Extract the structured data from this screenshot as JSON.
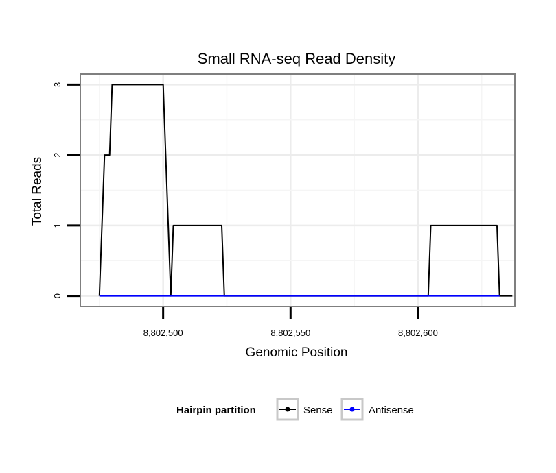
{
  "chart_data": {
    "type": "line",
    "title": "Small RNA-seq Read Density",
    "xlabel": "Genomic Position",
    "ylabel": "Total Reads",
    "xlim": [
      8802467.5,
      8802638
    ],
    "ylim": [
      -0.15,
      3.15
    ],
    "x_ticks": [
      8802500,
      8802550,
      8802600
    ],
    "x_tick_labels": [
      "8,802,500",
      "8,802,550",
      "8,802,600"
    ],
    "y_ticks": [
      0,
      1,
      2,
      3
    ],
    "y_tick_labels": [
      "0",
      "1",
      "2",
      "3"
    ],
    "grid": true,
    "legend": {
      "title": "Hairpin partition",
      "position": "bottom",
      "entries": [
        "Sense",
        "Antisense"
      ]
    },
    "series": [
      {
        "name": "Sense",
        "color": "#000000",
        "x": [
          8802475,
          8802477,
          8802479,
          8802480,
          8802494,
          8802500,
          8802501,
          8802503,
          8802504,
          8802523,
          8802524,
          8802604,
          8802605,
          8802631,
          8802632,
          8802637
        ],
        "y": [
          0,
          2,
          2,
          3,
          3,
          3,
          2,
          0,
          1,
          1,
          0,
          0,
          1,
          1,
          0,
          0
        ]
      },
      {
        "name": "Antisense",
        "color": "#0000ff",
        "x": [
          8802475,
          8802632
        ],
        "y": [
          0,
          0
        ]
      }
    ]
  }
}
